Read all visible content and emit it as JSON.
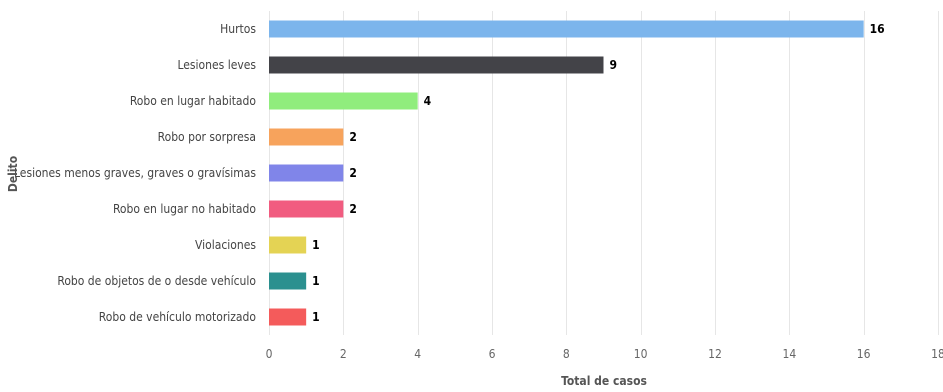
{
  "chart_data": {
    "type": "bar",
    "orientation": "horizontal",
    "categories": [
      "Hurtos",
      "Lesiones leves",
      "Robo en lugar habitado",
      "Robo por sorpresa",
      "Lesiones menos graves, graves o gravísimas",
      "Robo en lugar no habitado",
      "Violaciones",
      "Robo de objetos de o desde vehículo",
      "Robo de vehículo motorizado"
    ],
    "values": [
      16,
      9,
      4,
      2,
      2,
      2,
      1,
      1,
      1
    ],
    "colors": [
      "#7cb5ec",
      "#434348",
      "#90ed7d",
      "#f7a35c",
      "#8085e9",
      "#f15c80",
      "#e4d354",
      "#2b908f",
      "#f45b5b"
    ],
    "xlabel": "Total de casos",
    "ylabel": "Delito",
    "xlim": [
      0,
      18
    ],
    "xticks": [
      0,
      2,
      4,
      6,
      8,
      10,
      12,
      14,
      16,
      18
    ],
    "grid": true,
    "data_labels": true
  }
}
